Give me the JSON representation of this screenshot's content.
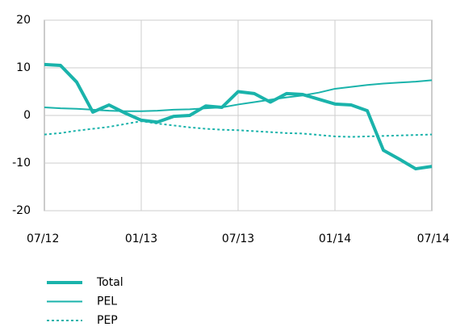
{
  "chart_data": {
    "type": "line",
    "categories": [
      "07/12",
      null,
      null,
      null,
      null,
      null,
      "01/13",
      null,
      null,
      null,
      null,
      null,
      "07/13",
      null,
      null,
      null,
      null,
      null,
      "01/14",
      null,
      null,
      null,
      null,
      null,
      "07/14"
    ],
    "series": [
      {
        "name": "Total",
        "color": "#1ab3ab",
        "line_width": 4,
        "line_style": "solid",
        "values": [
          10.7,
          10.5,
          7,
          0.7,
          2.2,
          0.5,
          -1,
          -1.4,
          -0.2,
          0,
          2,
          1.7,
          5,
          4.6,
          2.8,
          4.6,
          4.4,
          3.4,
          2.4,
          2.2,
          1,
          -7.3,
          -9.2,
          -11.2,
          -10.7
        ]
      },
      {
        "name": "PEL",
        "color": "#1ab3ab",
        "line_width": 2,
        "line_style": "solid",
        "values": [
          1.7,
          1.5,
          1.4,
          1.2,
          1.0,
          0.9,
          0.9,
          1.0,
          1.2,
          1.3,
          1.5,
          1.7,
          2.3,
          2.8,
          3.3,
          3.8,
          4.2,
          4.8,
          5.6,
          6.0,
          6.4,
          6.7,
          6.9,
          7.1,
          7.4
        ]
      },
      {
        "name": "PEP",
        "color": "#1ab3ab",
        "line_width": 2,
        "line_style": "dotted",
        "values": [
          -4.0,
          -3.7,
          -3.2,
          -2.8,
          -2.4,
          -1.8,
          -1.2,
          -1.7,
          -2.1,
          -2.5,
          -2.8,
          -3.0,
          -3.1,
          -3.3,
          -3.5,
          -3.7,
          -3.8,
          -4.1,
          -4.4,
          -4.5,
          -4.4,
          -4.3,
          -4.2,
          -4.1,
          -4.0
        ]
      }
    ],
    "ylim": [
      -20,
      20
    ],
    "yticks": [
      -20,
      -10,
      0,
      10,
      20
    ],
    "grid": true
  }
}
